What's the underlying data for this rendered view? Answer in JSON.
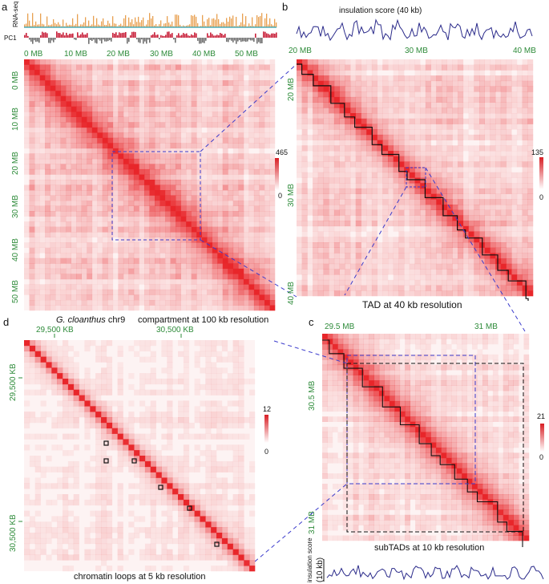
{
  "panels": {
    "a": {
      "letter": "a",
      "tracks": [
        "RNA-seq",
        "PC1"
      ],
      "x_ticks": [
        "0 MB",
        "10 MB",
        "20 MB",
        "30 MB",
        "40 MB",
        "50 MB"
      ],
      "y_ticks": [
        "0 MB",
        "10 MB",
        "20 MB",
        "30 MB",
        "40 MB",
        "50 MB"
      ],
      "scale_max": "465",
      "scale_min": "0",
      "species": "G. cloanthus",
      "chrom": " chr9",
      "caption": "compartment at 100 kb resolution"
    },
    "b": {
      "letter": "b",
      "track_title": "insulation score (40 kb)",
      "x_ticks": [
        "20 MB",
        "30 MB",
        "40 MB"
      ],
      "y_ticks": [
        "20 MB",
        "30 MB",
        "40 MB"
      ],
      "scale_max": "135",
      "scale_min": "0",
      "caption": "TAD at 40 kb resolution"
    },
    "c": {
      "letter": "c",
      "x_ticks": [
        "29.5 MB",
        "31 MB"
      ],
      "y_ticks": [
        "30.5 MB",
        "31 MB"
      ],
      "scale_max": "21",
      "scale_min": "0",
      "caption": "subTADs at 10 kb resolution",
      "track_title_1": "insulation score",
      "track_title_2": "(10 kb)"
    },
    "d": {
      "letter": "d",
      "x_ticks": [
        "29,500 KB",
        "30,500 KB"
      ],
      "y_ticks": [
        "29,500 KB",
        "30,500 KB"
      ],
      "scale_max": "12",
      "scale_min": "0",
      "caption": "chromatin loops at 5 kb resolution"
    }
  },
  "colors": {
    "heat": "#e8262a",
    "tick_text": "#2e8b3a",
    "zoom_line": "#3b3bcc",
    "rna": "#e8a050",
    "pc1_pos": "#c8203a",
    "pc1_neg": "#707070",
    "insulation": "#2a2a8a"
  }
}
